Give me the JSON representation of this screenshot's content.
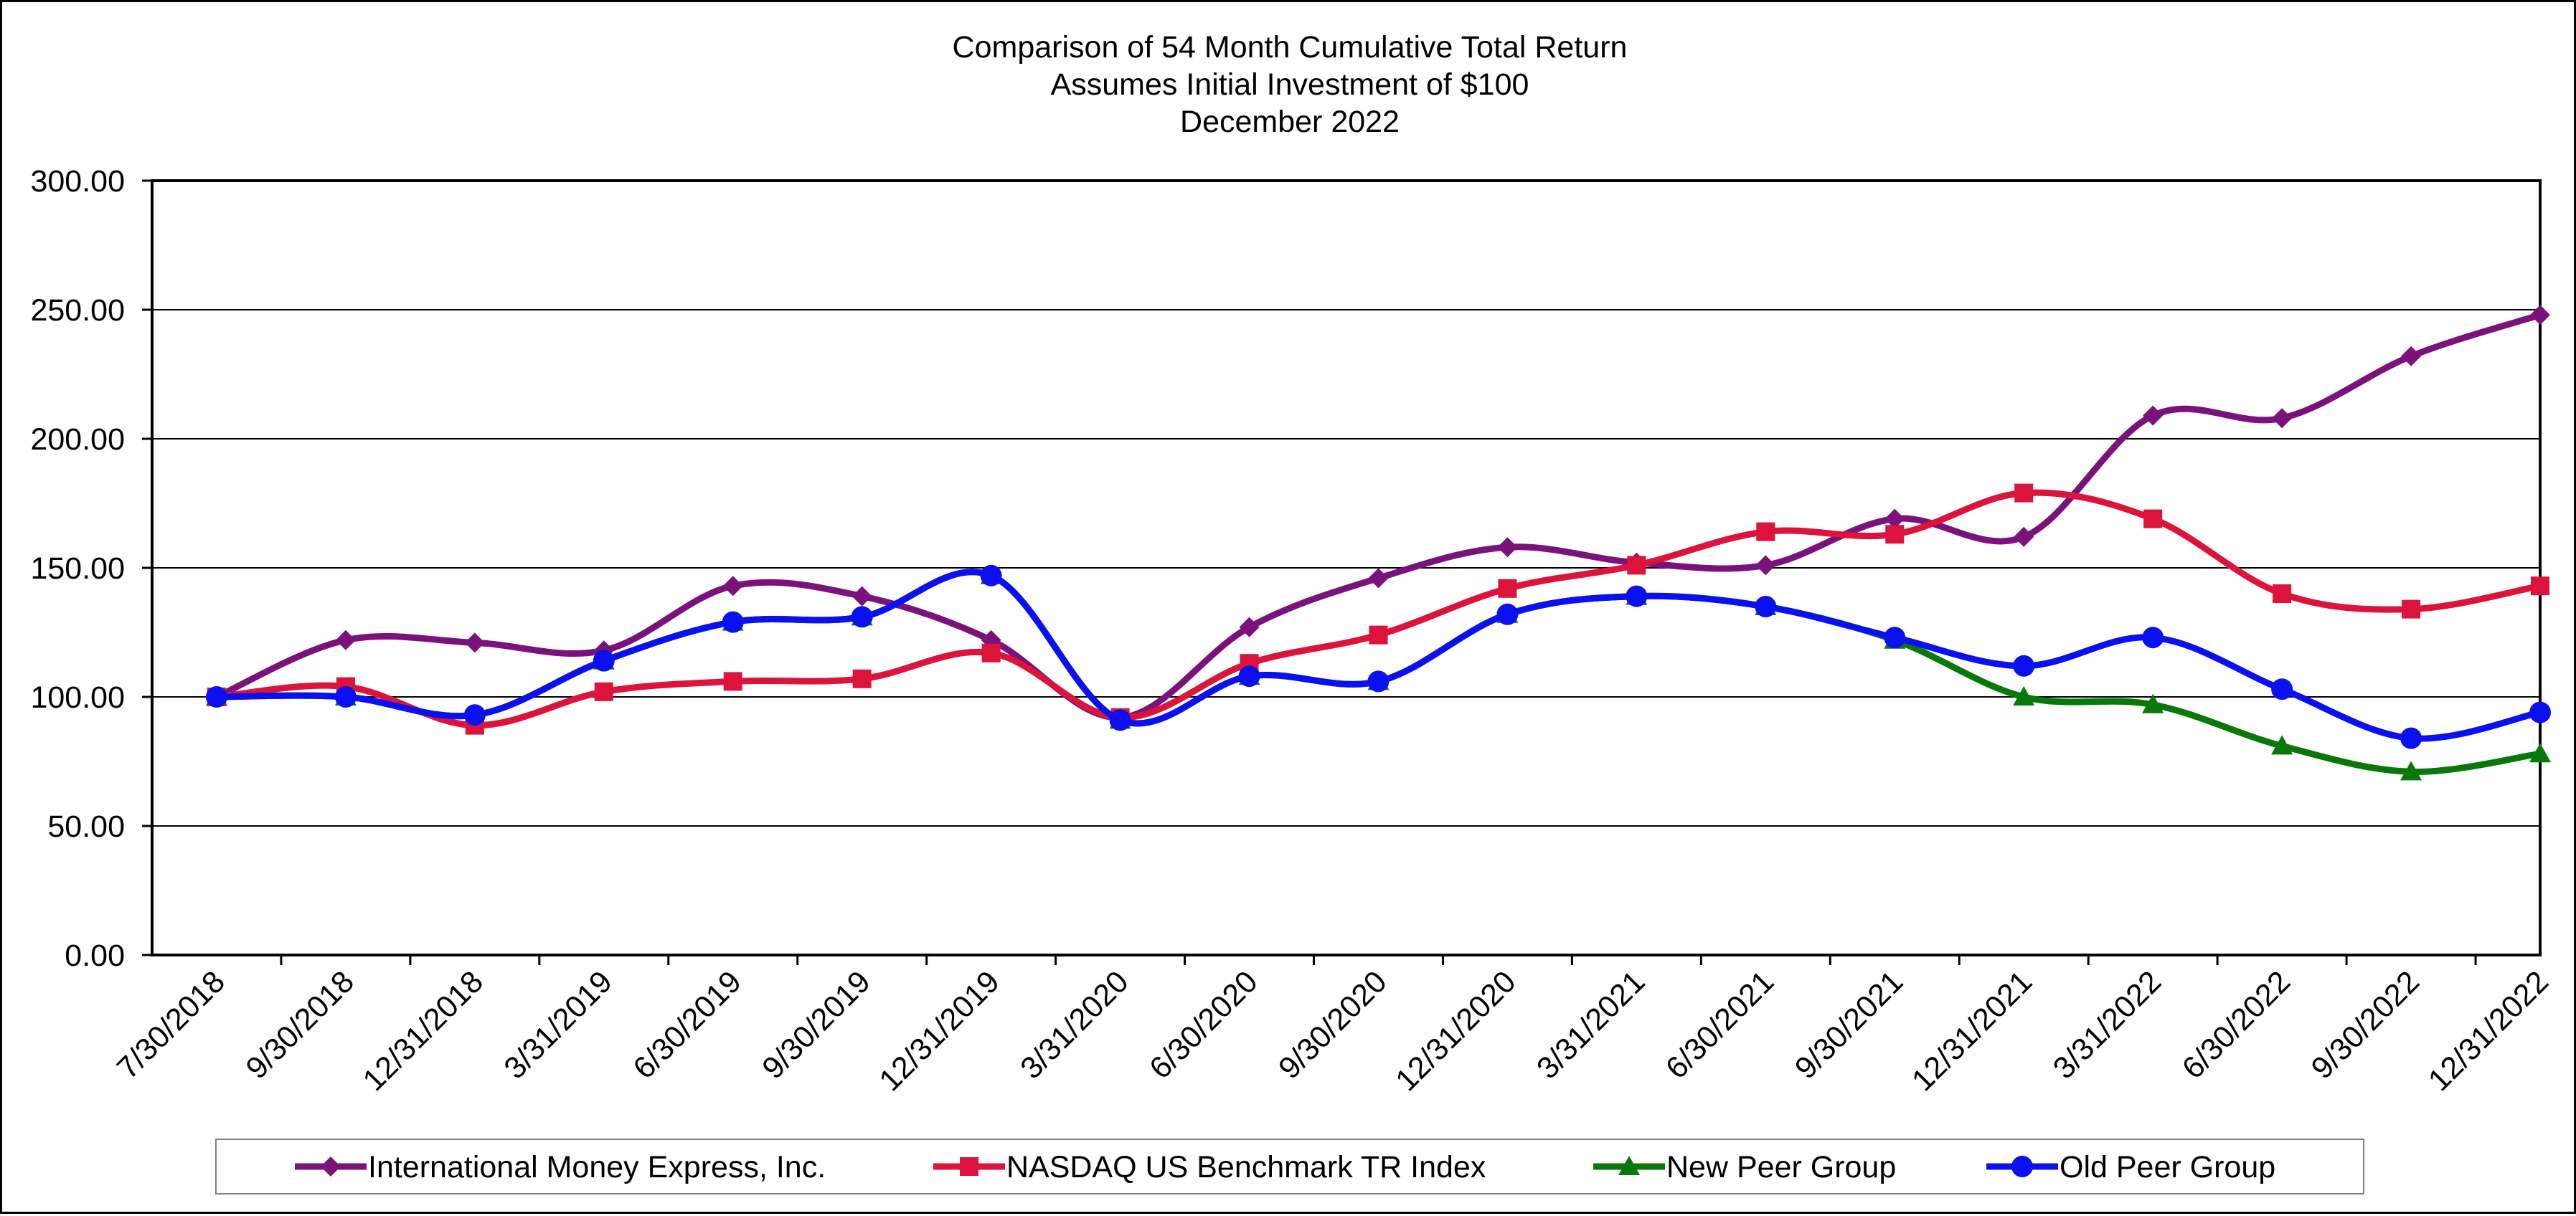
{
  "chart_data": {
    "type": "line",
    "title": [
      "Comparison of 54 Month Cumulative Total Return",
      "Assumes Initial Investment of $100",
      "December 2022"
    ],
    "xlabel": "",
    "ylabel": "",
    "x": [
      "7/30/2018",
      "9/30/2018",
      "12/31/2018",
      "3/31/2019",
      "6/30/2019",
      "9/30/2019",
      "12/31/2019",
      "3/31/2020",
      "6/30/2020",
      "9/30/2020",
      "12/31/2020",
      "3/31/2021",
      "6/30/2021",
      "9/30/2021",
      "12/31/2021",
      "3/31/2022",
      "6/30/2022",
      "9/30/2022",
      "12/31/2022"
    ],
    "ylim": [
      0,
      300
    ],
    "yticks": [
      "0.00",
      "50.00",
      "100.00",
      "150.00",
      "200.00",
      "250.00",
      "300.00"
    ],
    "grid": "horizontal",
    "legend_position": "bottom",
    "series": [
      {
        "name": "International Money Express, Inc.",
        "color": "#7B127B",
        "marker": "diamond",
        "values": [
          100,
          122,
          121,
          118,
          143,
          139,
          122,
          92,
          127,
          146,
          158,
          152,
          151,
          169,
          162,
          209,
          208,
          232,
          248
        ]
      },
      {
        "name": "NASDAQ US Benchmark TR Index",
        "color": "#DC143C",
        "marker": "square",
        "values": [
          100,
          104,
          89,
          102,
          106,
          107,
          117,
          92,
          113,
          124,
          142,
          151,
          164,
          163,
          179,
          169,
          140,
          134,
          143
        ]
      },
      {
        "name": "New Peer Group",
        "color": "#087808",
        "marker": "triangle",
        "values": [
          100,
          100,
          93,
          114,
          129,
          131,
          147,
          91,
          108,
          106,
          132,
          139,
          135,
          122,
          100,
          97,
          81,
          71,
          78
        ]
      },
      {
        "name": "Old Peer Group",
        "color": "#0A10F0",
        "marker": "circle",
        "values": [
          100,
          100,
          93,
          114,
          129,
          131,
          147,
          91,
          108,
          106,
          132,
          139,
          135,
          123,
          112,
          123,
          103,
          84,
          94
        ]
      }
    ]
  }
}
